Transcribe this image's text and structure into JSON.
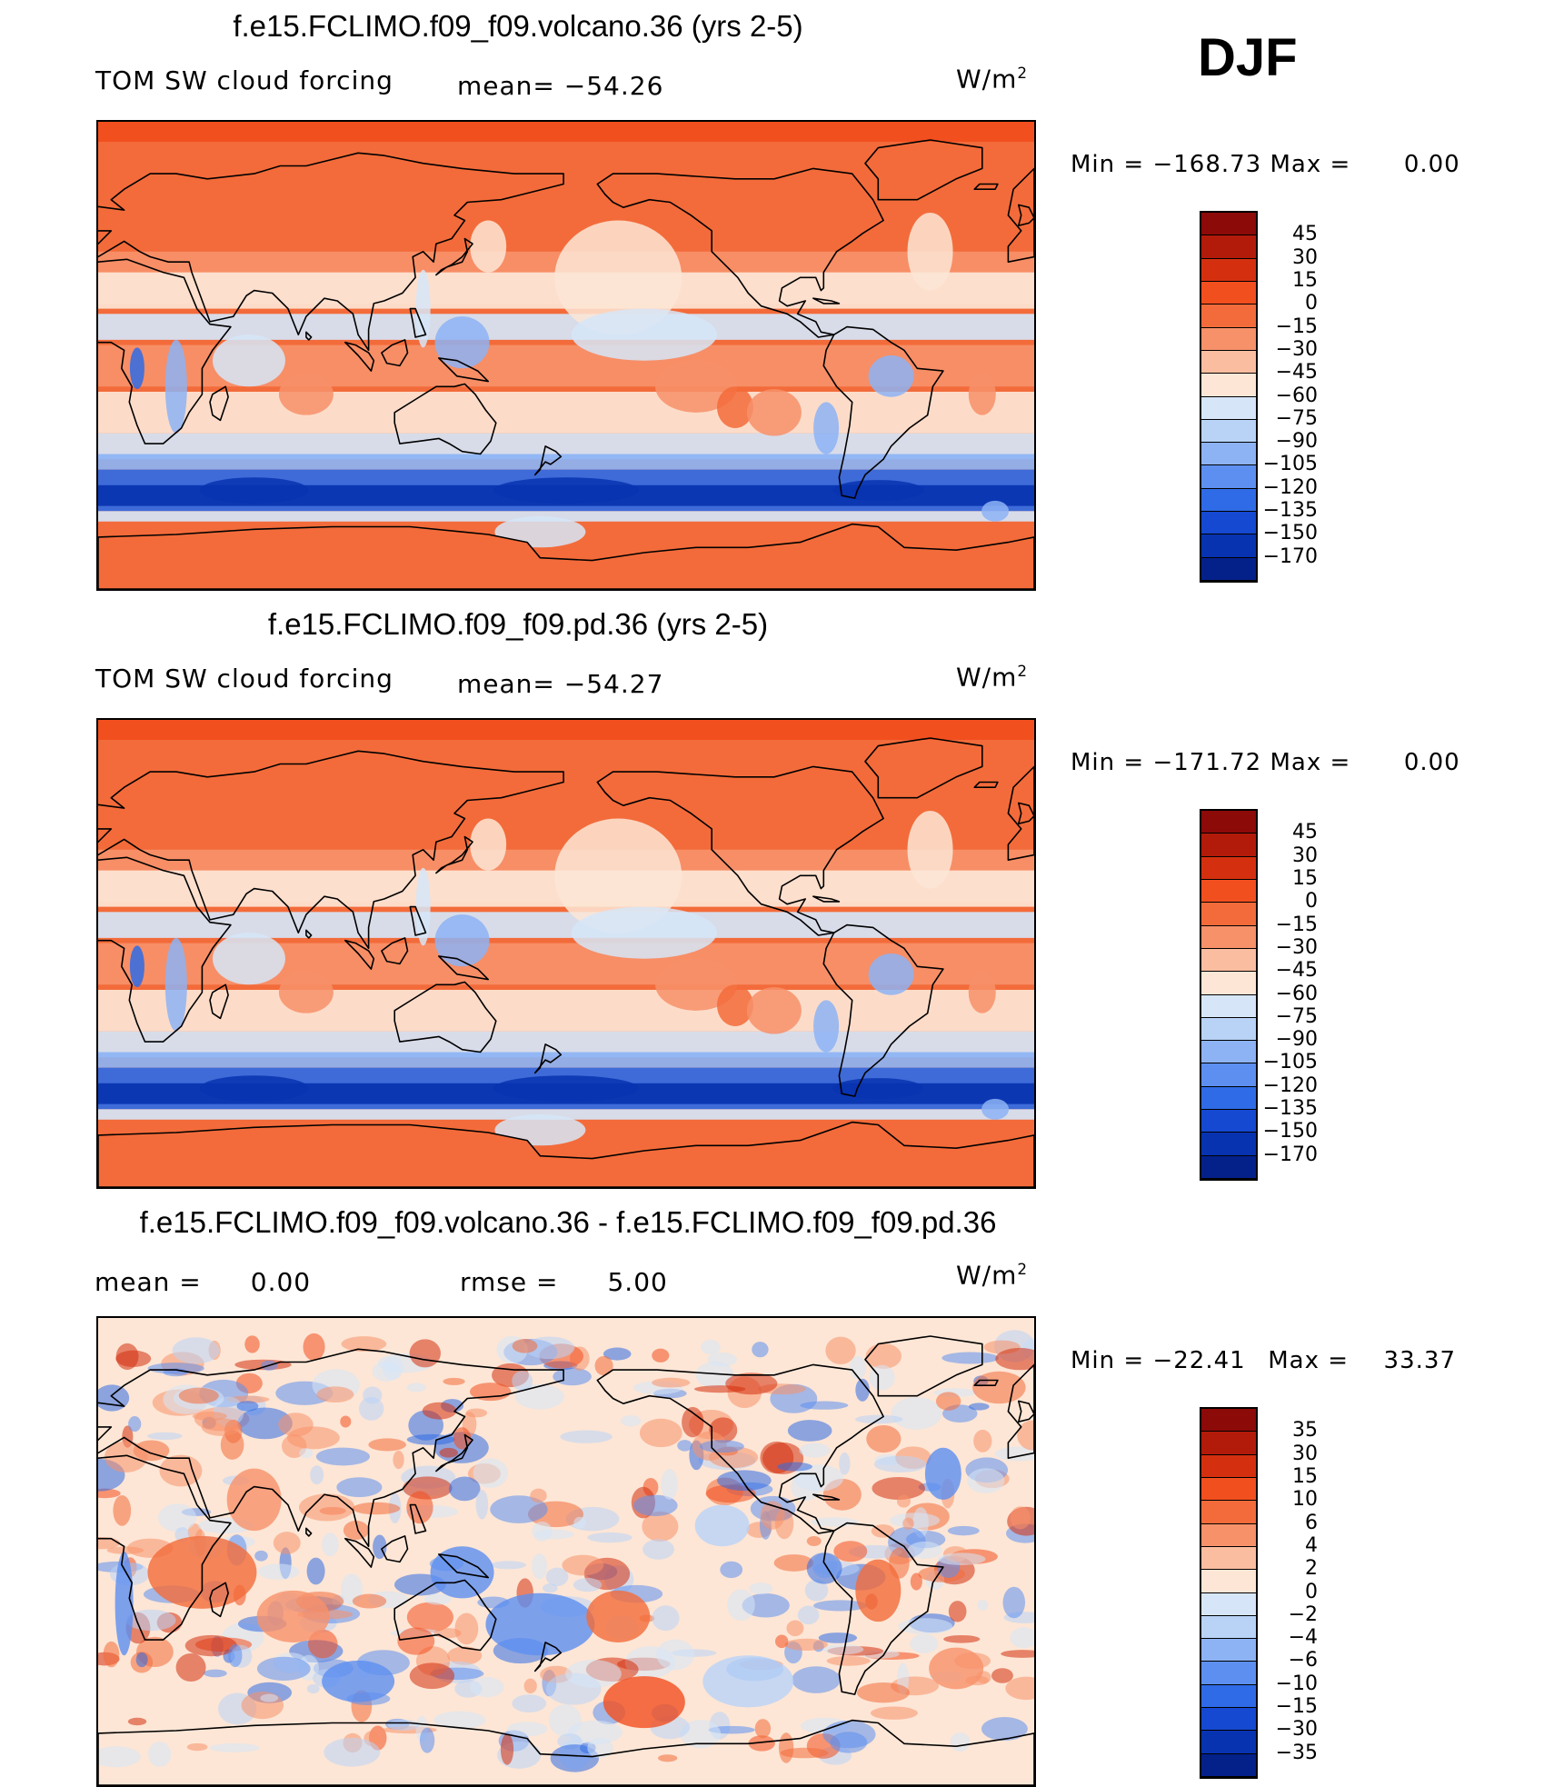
{
  "season": "DJF",
  "units_base": "W/m",
  "units_exp": "2",
  "chart_data": [
    {
      "type": "heatmap",
      "title": "f.e15.FCLIMO.f09_f09.volcano.36 (yrs 2-5)",
      "variable": "TOM SW cloud forcing",
      "mean_label": "mean=",
      "mean_value": "−54.26",
      "min_label": "Min  =",
      "min_value": "−168.73",
      "max_label": "Max  =",
      "max_value": "0.00",
      "colorbar_levels": [
        "45",
        "30",
        "15",
        "0",
        "−15",
        "−30",
        "−45",
        "−60",
        "−75",
        "−90",
        "−105",
        "−120",
        "−135",
        "−150",
        "−170"
      ],
      "colorbar_colors": [
        "#8c0a08",
        "#b21b0a",
        "#d4300f",
        "#f24f1f",
        "#f36b3a",
        "#f7916a",
        "#fbbda0",
        "#fde6d6",
        "#d6e6f8",
        "#b9d3f7",
        "#8db3f4",
        "#5d8ff0",
        "#2f6be6",
        "#1549d1",
        "#0833b0",
        "#04218a"
      ]
    },
    {
      "type": "heatmap",
      "title": "f.e15.FCLIMO.f09_f09.pd.36 (yrs 2-5)",
      "variable": "TOM SW cloud forcing",
      "mean_label": "mean=",
      "mean_value": "−54.27",
      "min_label": "Min  =",
      "min_value": "−171.72",
      "max_label": "Max  =",
      "max_value": "0.00",
      "colorbar_levels": [
        "45",
        "30",
        "15",
        "0",
        "−15",
        "−30",
        "−45",
        "−60",
        "−75",
        "−90",
        "−105",
        "−120",
        "−135",
        "−150",
        "−170"
      ],
      "colorbar_colors": [
        "#8c0a08",
        "#b21b0a",
        "#d4300f",
        "#f24f1f",
        "#f36b3a",
        "#f7916a",
        "#fbbda0",
        "#fde6d6",
        "#d6e6f8",
        "#b9d3f7",
        "#8db3f4",
        "#5d8ff0",
        "#2f6be6",
        "#1549d1",
        "#0833b0",
        "#04218a"
      ]
    },
    {
      "type": "heatmap",
      "title": "f.e15.FCLIMO.f09_f09.volcano.36 - f.e15.FCLIMO.f09_f09.pd.36",
      "mean_label": "mean  =",
      "mean_value": "0.00",
      "rmse_label": "rmse  =",
      "rmse_value": "5.00",
      "min_label": "Min  =",
      "min_value": "−22.41",
      "max_label": "Max  =",
      "max_value": "33.37",
      "colorbar_levels": [
        "35",
        "30",
        "15",
        "10",
        "6",
        "4",
        "2",
        "0",
        "−2",
        "−4",
        "−6",
        "−10",
        "−15",
        "−30",
        "−35"
      ],
      "colorbar_colors": [
        "#8c0a08",
        "#b21b0a",
        "#d4300f",
        "#f24f1f",
        "#f36b3a",
        "#f7916a",
        "#fbbda0",
        "#fde6d6",
        "#d6e6f8",
        "#b9d3f7",
        "#8db3f4",
        "#5d8ff0",
        "#2f6be6",
        "#1549d1",
        "#0833b0",
        "#04218a"
      ]
    }
  ]
}
